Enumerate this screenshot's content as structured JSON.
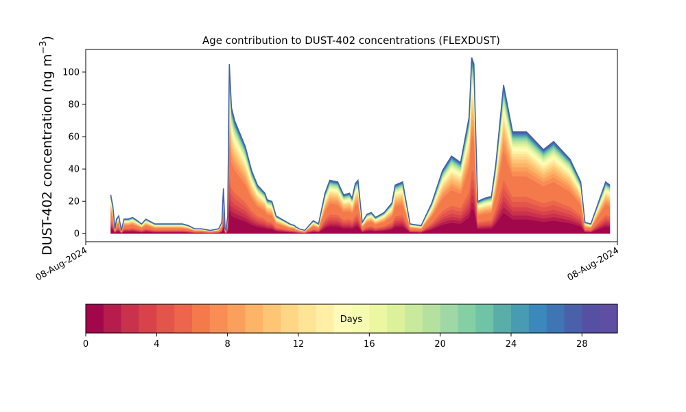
{
  "chart_data": {
    "type": "area",
    "title": "Age contribution to DUST-402 concentrations (FLEXDUST)",
    "ylabel": "DUST-402 concentration (ng m",
    "ylabel_sup": "−3",
    "ylabel_close": ")",
    "xlabel": "",
    "x_tick_labels": [
      "08-Aug-2024",
      "08-Aug-2024"
    ],
    "ylim": [
      -5,
      114
    ],
    "y_ticks": [
      0,
      20,
      40,
      60,
      80,
      100
    ],
    "grid": false,
    "stacked": true,
    "x": [
      0.047,
      0.051,
      0.055,
      0.058,
      0.062,
      0.067,
      0.072,
      0.08,
      0.088,
      0.097,
      0.105,
      0.113,
      0.13,
      0.151,
      0.172,
      0.182,
      0.193,
      0.205,
      0.218,
      0.234,
      0.25,
      0.256,
      0.259,
      0.262,
      0.264,
      0.267,
      0.27,
      0.274,
      0.28,
      0.3,
      0.312,
      0.323,
      0.337,
      0.341,
      0.35,
      0.358,
      0.384,
      0.393,
      0.395,
      0.397,
      0.401,
      0.412,
      0.428,
      0.438,
      0.45,
      0.459,
      0.474,
      0.485,
      0.496,
      0.501,
      0.507,
      0.512,
      0.52,
      0.529,
      0.537,
      0.545,
      0.561,
      0.576,
      0.582,
      0.596,
      0.61,
      0.631,
      0.651,
      0.671,
      0.688,
      0.705,
      0.721,
      0.726,
      0.73,
      0.737,
      0.751,
      0.763,
      0.771,
      0.786,
      0.794,
      0.803,
      0.829,
      0.861,
      0.88,
      0.911,
      0.931,
      0.939,
      0.95,
      0.964,
      0.978,
      0.986
    ],
    "total": [
      24,
      17,
      3,
      9,
      11,
      2,
      9,
      9,
      10,
      8,
      6,
      9,
      6,
      6,
      6,
      6,
      5,
      3,
      3,
      2,
      3,
      7,
      28,
      3,
      2,
      11,
      105,
      78,
      70,
      54,
      39,
      30,
      25,
      21,
      20,
      11,
      6,
      5,
      4,
      4,
      3,
      2,
      8,
      6,
      25,
      33,
      32,
      24,
      25,
      22,
      31,
      33,
      7,
      12,
      13,
      10,
      13,
      19,
      30,
      32,
      6,
      5,
      19,
      39,
      48,
      44,
      72,
      109,
      105,
      20,
      22,
      23,
      42,
      92,
      78,
      63,
      63,
      52,
      57,
      46,
      32,
      7,
      6,
      19,
      32,
      30
    ],
    "series": [
      {
        "days_label": "0-1",
        "frac": 0.14
      },
      {
        "days_label": "1-2",
        "frac": 0.04
      },
      {
        "days_label": "2-3",
        "frac": 0.04
      },
      {
        "days_label": "3-4",
        "frac": 0.04
      },
      {
        "days_label": "4-5",
        "frac": 0.05
      },
      {
        "days_label": "5-6",
        "frac": 0.05
      },
      {
        "days_label": "6-7",
        "frac": 0.2
      },
      {
        "days_label": "7-8",
        "frac": 0.05
      },
      {
        "days_label": "8-9",
        "frac": 0.04
      },
      {
        "days_label": "9-10",
        "frac": 0.04
      },
      {
        "days_label": "10-11",
        "frac": 0.035
      },
      {
        "days_label": "11-12",
        "frac": 0.03
      },
      {
        "days_label": "12-13",
        "frac": 0.025
      },
      {
        "days_label": "13-14",
        "frac": 0.025
      },
      {
        "days_label": "14-15",
        "frac": 0.02
      },
      {
        "days_label": "15-16",
        "frac": 0.02
      },
      {
        "days_label": "16-17",
        "frac": 0.018
      },
      {
        "days_label": "17-18",
        "frac": 0.016
      },
      {
        "days_label": "18-19",
        "frac": 0.015
      },
      {
        "days_label": "19-20",
        "frac": 0.014
      },
      {
        "days_label": "20-21",
        "frac": 0.013
      },
      {
        "days_label": "21-22",
        "frac": 0.012
      },
      {
        "days_label": "22-23",
        "frac": 0.011
      },
      {
        "days_label": "23-24",
        "frac": 0.01
      },
      {
        "days_label": "24-25",
        "frac": 0.009
      },
      {
        "days_label": "25-26",
        "frac": 0.008
      },
      {
        "days_label": "26-27",
        "frac": 0.007
      },
      {
        "days_label": "27-28",
        "frac": 0.006
      },
      {
        "days_label": "28-29",
        "frac": 0.005
      },
      {
        "days_label": "29-30",
        "frac": 0.005
      }
    ],
    "colorbar": {
      "label": "Days",
      "ticks": [
        "0",
        "4",
        "8",
        "12",
        "16",
        "20",
        "24",
        "28"
      ],
      "range": [
        0,
        30
      ],
      "colors": [
        "#a2064b",
        "#b71d4c",
        "#ca324c",
        "#da424b",
        "#e3554b",
        "#ec654c",
        "#f57a4b",
        "#f98e54",
        "#fba05c",
        "#fdb466",
        "#fec575",
        "#fed685",
        "#fee495",
        "#fff0a5",
        "#fffcba",
        "#f6fbb2",
        "#ebf7a1",
        "#dcf199",
        "#c9ea9d",
        "#b5e19f",
        "#9fd8a4",
        "#85cfa4",
        "#6ec4a5",
        "#5aaea9",
        "#479cb3",
        "#3a88bc",
        "#3f75b5",
        "#4861aa",
        "#5550a3",
        "#5e4fa2"
      ]
    },
    "edge_color": "#4561aa"
  }
}
